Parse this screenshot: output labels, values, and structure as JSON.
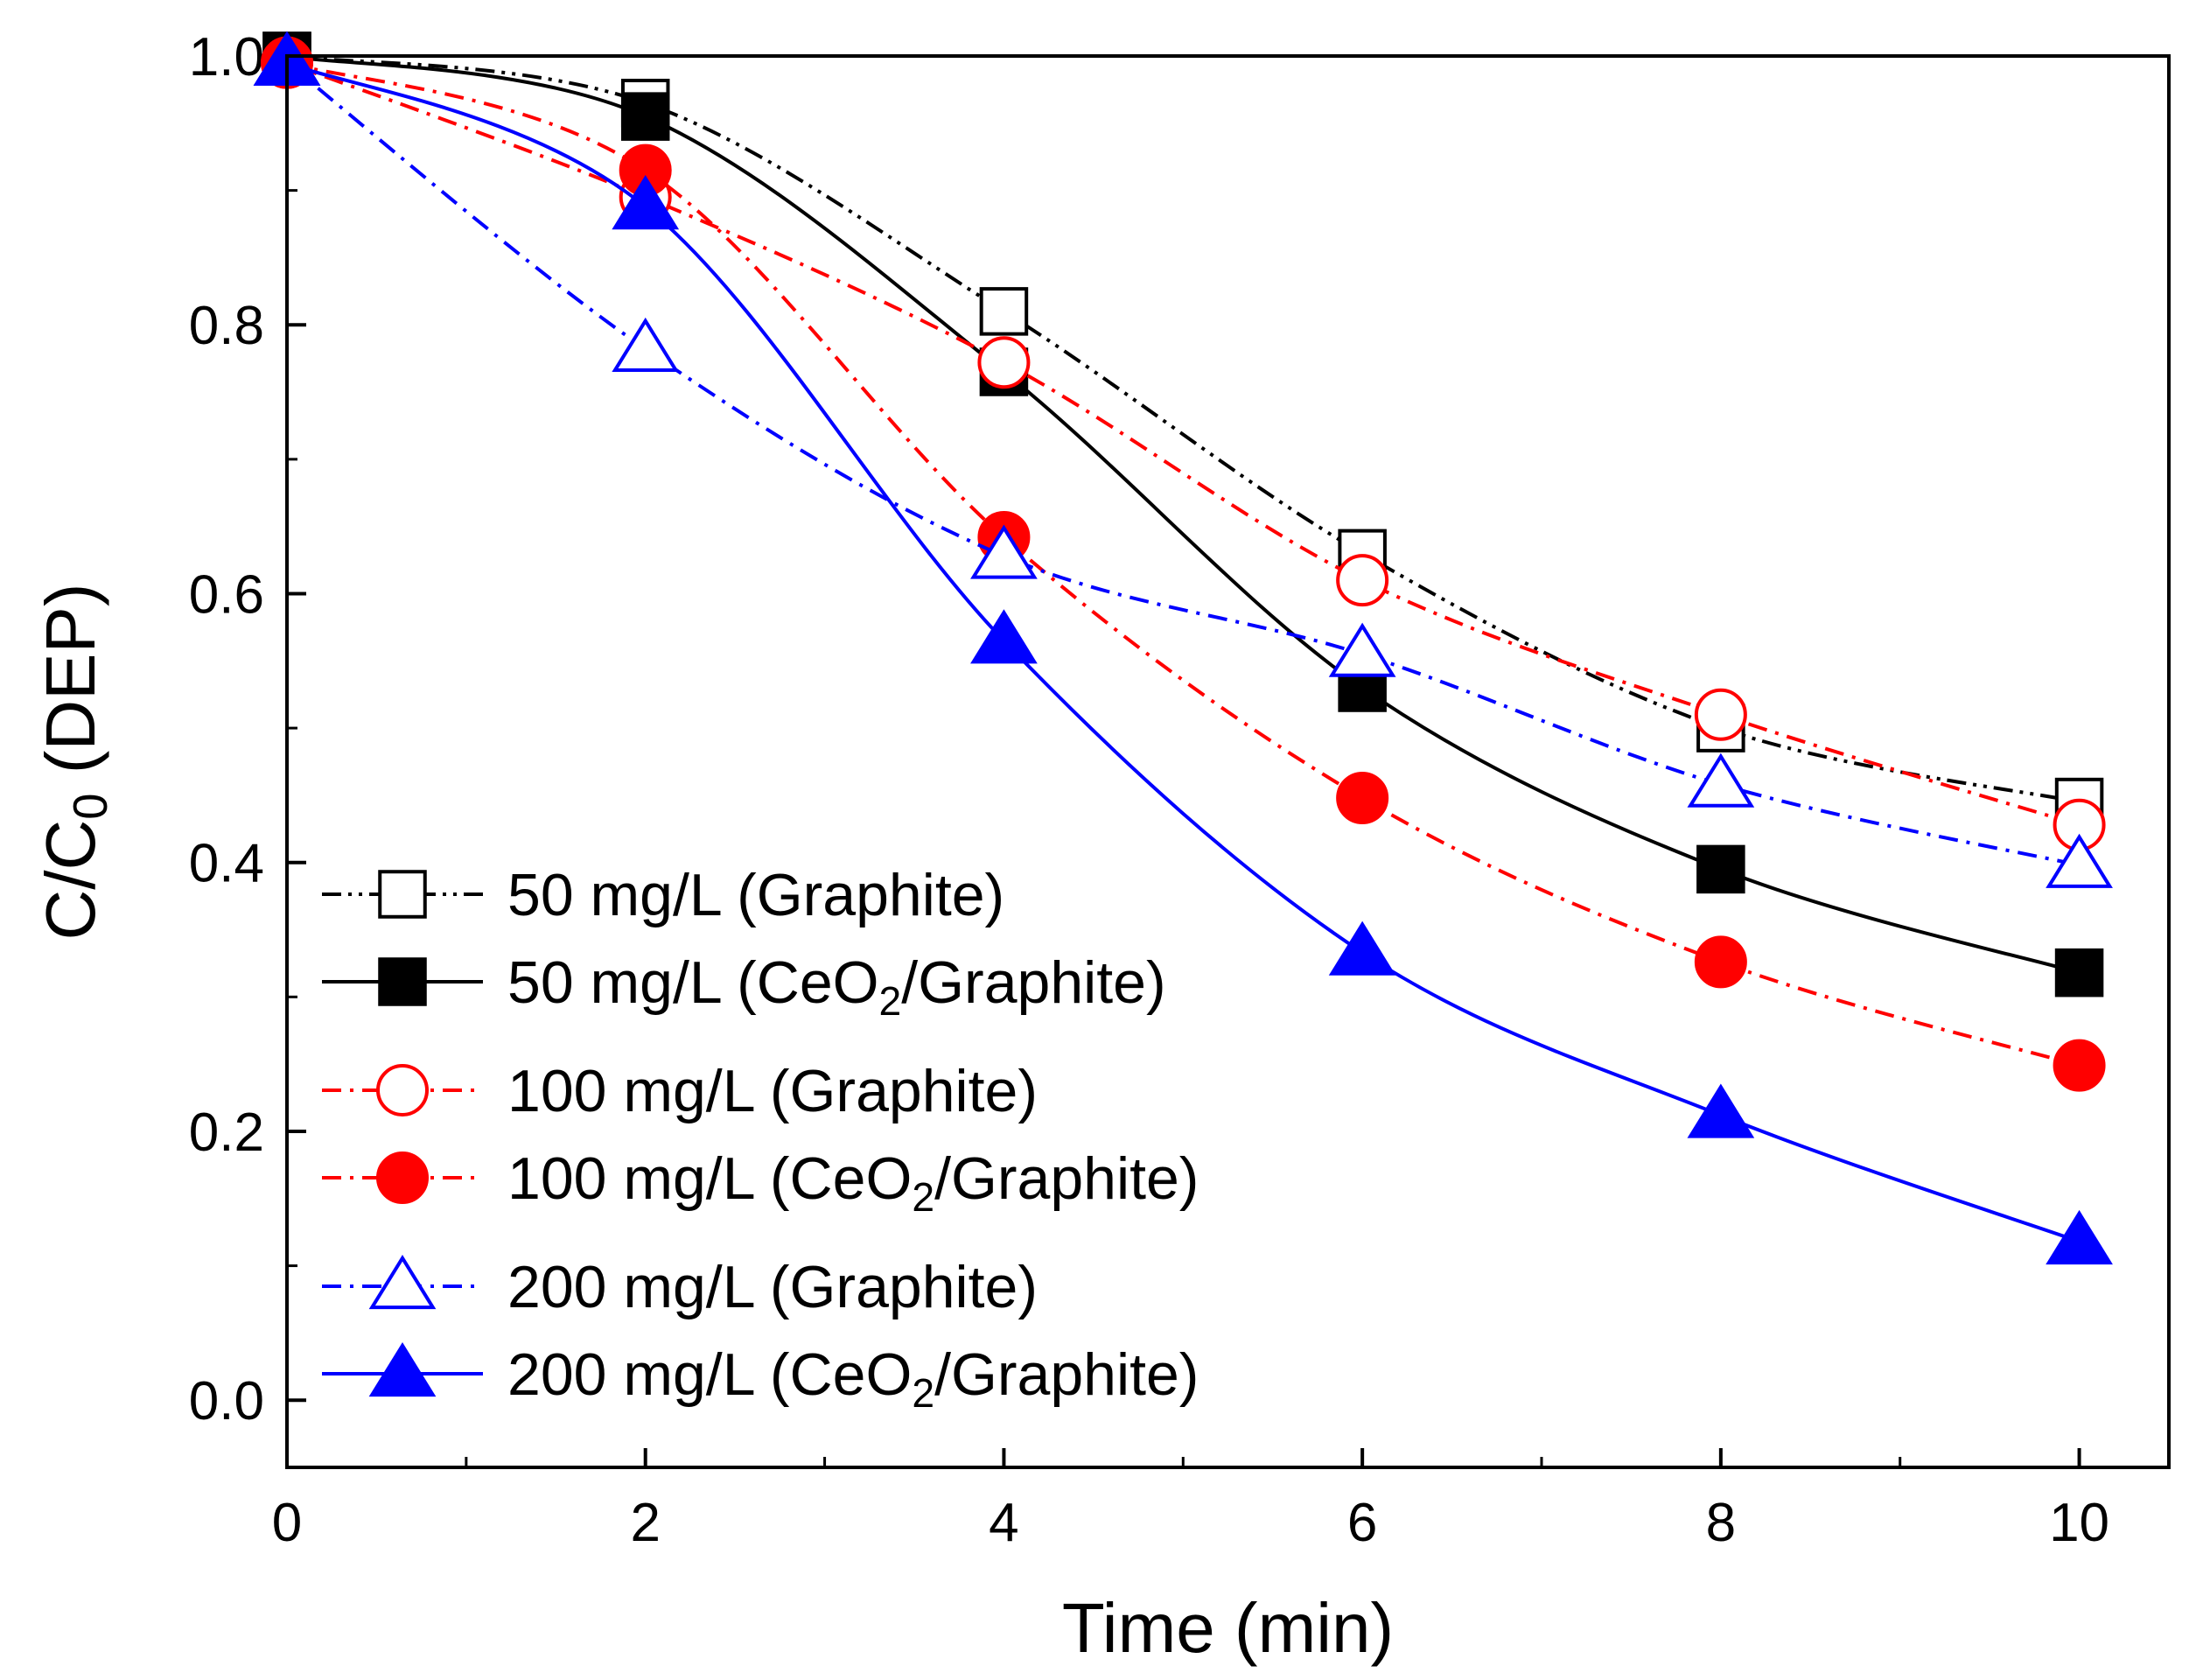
{
  "chart_data": {
    "type": "line",
    "title": "",
    "xlabel": "Time (min)",
    "ylabel": {
      "main": "C/C",
      "sub": "0",
      "suffix": " (DEP)"
    },
    "xlim": [
      0,
      10.5
    ],
    "ylim": [
      -0.05,
      1.0
    ],
    "xticks": [
      0,
      2,
      4,
      6,
      8,
      10
    ],
    "xtick_labels": [
      "0",
      "2",
      "4",
      "6",
      "8",
      "10"
    ],
    "yticks": [
      0.0,
      0.2,
      0.4,
      0.6,
      0.8,
      1.0
    ],
    "ytick_labels": [
      "0.0",
      "0.2",
      "0.4",
      "0.6",
      "0.8",
      "1.0"
    ],
    "grid": false,
    "legend_position": "bottom-left",
    "x": [
      0,
      2,
      4,
      6,
      8,
      10
    ],
    "series": [
      {
        "id": "s50g",
        "name": "50 mg/L (Graphite)",
        "legend": {
          "main": "50 mg/L (Graphite)"
        },
        "values": [
          1.0,
          0.965,
          0.81,
          0.63,
          0.5,
          0.445
        ],
        "color": "#000000",
        "marker": "square",
        "filled": false,
        "line": "dashdotdot"
      },
      {
        "id": "s50c",
        "name": "50 mg/L (CeO2/Graphite)",
        "legend": {
          "main": "50 mg/L (CeO",
          "sub": "2",
          "suffix": "/Graphite)"
        },
        "values": [
          1.0,
          0.955,
          0.765,
          0.53,
          0.395,
          0.318
        ],
        "color": "#000000",
        "marker": "square",
        "filled": true,
        "line": "solid"
      },
      {
        "id": "s100g",
        "name": "100 mg/L (Graphite)",
        "legend": {
          "main": "100 mg/L (Graphite)"
        },
        "values": [
          0.995,
          0.895,
          0.772,
          0.61,
          0.51,
          0.428
        ],
        "color": "#ff0000",
        "marker": "circle",
        "filled": false,
        "line": "dashdot"
      },
      {
        "id": "s100c",
        "name": "100 mg/L (CeO2/Graphite)",
        "legend": {
          "main": "100 mg/L (CeO",
          "sub": "2",
          "suffix": "/Graphite)"
        },
        "values": [
          0.995,
          0.915,
          0.642,
          0.448,
          0.326,
          0.249
        ],
        "color": "#ff0000",
        "marker": "circle",
        "filled": true,
        "line": "dashdot"
      },
      {
        "id": "s200g",
        "name": "200 mg/L (Graphite)",
        "legend": {
          "main": "200 mg/L (Graphite)"
        },
        "values": [
          0.995,
          0.782,
          0.628,
          0.555,
          0.458,
          0.398
        ],
        "color": "#0000ff",
        "marker": "triangle",
        "filled": false,
        "line": "dashdot"
      },
      {
        "id": "s200c",
        "name": "200 mg/L (CeO2/Graphite)",
        "legend": {
          "main": "200 mg/L (CeO",
          "sub": "2",
          "suffix": "/Graphite)"
        },
        "values": [
          0.995,
          0.888,
          0.565,
          0.333,
          0.212,
          0.118
        ],
        "color": "#0000ff",
        "marker": "triangle",
        "filled": true,
        "line": "solid"
      }
    ]
  }
}
